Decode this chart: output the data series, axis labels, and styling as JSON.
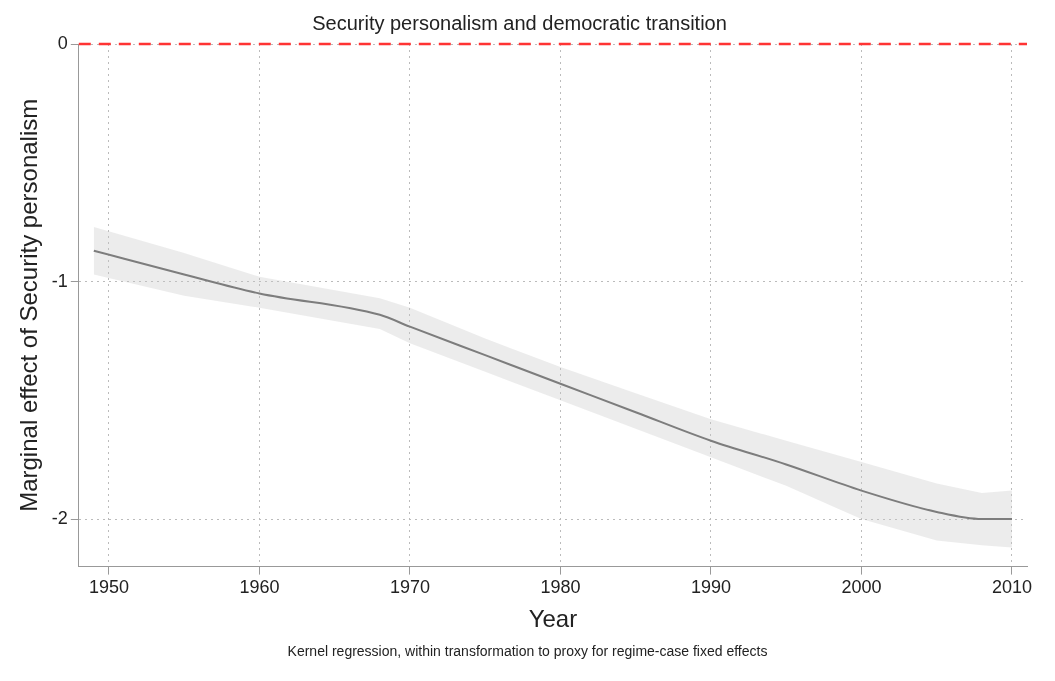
{
  "chart_data": {
    "type": "line",
    "title": "Security personalism and democratic transition",
    "xlabel": "Year",
    "ylabel": "Marginal effect of Security personalism",
    "annotations": [
      "Kernel regression, within transformation to proxy for regime-case fixed effects"
    ],
    "x": [
      1949,
      1955,
      1960,
      1968,
      1970,
      1975,
      1980,
      1985,
      1990,
      1995,
      2000,
      2005,
      2008,
      2010
    ],
    "series": [
      {
        "color": "#555555",
        "values": [
          -0.87,
          -0.97,
          -1.05,
          -1.14,
          -1.19,
          -1.31,
          -1.43,
          -1.55,
          -1.67,
          -1.77,
          -1.88,
          -1.97,
          -2.0,
          -2.0
        ],
        "upper": [
          -0.77,
          -0.88,
          -0.98,
          -1.07,
          -1.11,
          -1.24,
          -1.36,
          -1.47,
          -1.58,
          -1.67,
          -1.76,
          -1.85,
          -1.89,
          -1.88
        ],
        "lower": [
          -0.97,
          -1.06,
          -1.11,
          -1.2,
          -1.26,
          -1.38,
          -1.5,
          -1.62,
          -1.74,
          -1.86,
          -2.0,
          -2.09,
          -2.11,
          -2.12
        ]
      }
    ],
    "xlim": [
      1948,
      2011
    ],
    "xticks": [
      1950,
      1960,
      1970,
      1980,
      1990,
      2000,
      2010
    ],
    "ylim": [
      -2.2,
      0
    ],
    "yticks": [
      0,
      -1,
      -2
    ],
    "ref_lines": [
      {
        "axis": "y",
        "value": 0,
        "color": "#ff3333",
        "line_style": "dashed"
      }
    ],
    "grid": true,
    "legend": false,
    "marker": "none",
    "line_style": "solid"
  }
}
